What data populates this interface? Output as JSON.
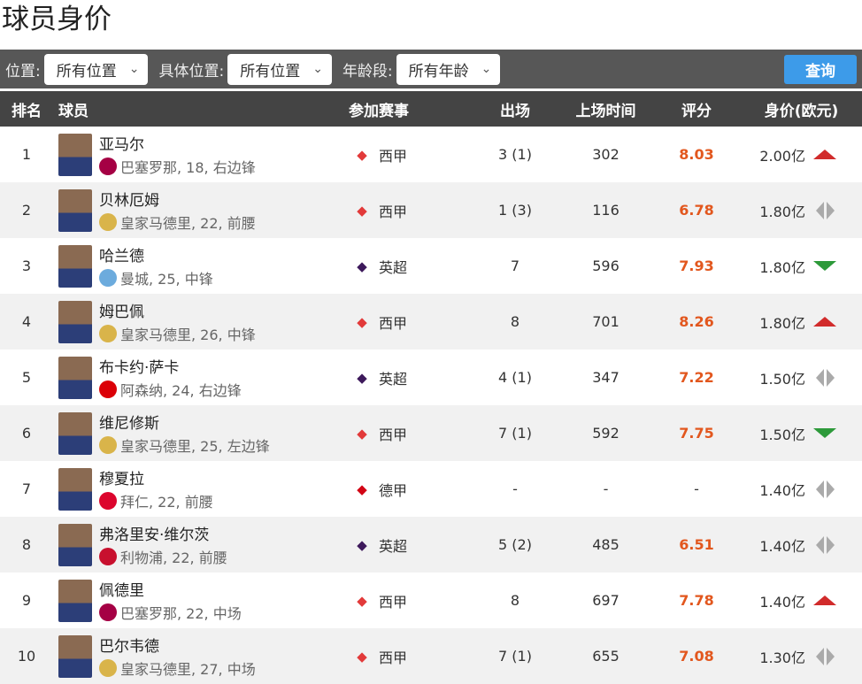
{
  "title": "球员身价",
  "filters": {
    "position_label": "位置:",
    "position_value": "所有位置",
    "detail_label": "具体位置:",
    "detail_value": "所有位置",
    "age_label": "年龄段:",
    "age_value": "所有年龄",
    "query_button": "查询"
  },
  "columns": [
    "排名",
    "球员",
    "参加赛事",
    "出场",
    "上场时间",
    "评分",
    "身价(欧元)"
  ],
  "colors": {
    "rating": "#e2571e",
    "up": "#d12b2b",
    "down": "#2d9a3a",
    "flat": "#aaaaaa",
    "query_button": "#3d9be9"
  },
  "rows": [
    {
      "rank": "1",
      "name": "亚马尔",
      "info": "巴塞罗那, 18, 右边锋",
      "club_color": "#a50044",
      "league": "西甲",
      "league_color": "#e23a3a",
      "apps": "3 (1)",
      "mins": "302",
      "rating": "8.03",
      "value": "2.00亿",
      "trend": "up"
    },
    {
      "rank": "2",
      "name": "贝林厄姆",
      "info": "皇家马德里, 22, 前腰",
      "club_color": "#d9b44a",
      "league": "西甲",
      "league_color": "#e23a3a",
      "apps": "1 (3)",
      "mins": "116",
      "rating": "6.78",
      "value": "1.80亿",
      "trend": "flat"
    },
    {
      "rank": "3",
      "name": "哈兰德",
      "info": "曼城, 25, 中锋",
      "club_color": "#6cabdd",
      "league": "英超",
      "league_color": "#3d195b",
      "apps": "7",
      "mins": "596",
      "rating": "7.93",
      "value": "1.80亿",
      "trend": "down"
    },
    {
      "rank": "4",
      "name": "姆巴佩",
      "info": "皇家马德里, 26, 中锋",
      "club_color": "#d9b44a",
      "league": "西甲",
      "league_color": "#e23a3a",
      "apps": "8",
      "mins": "701",
      "rating": "8.26",
      "value": "1.80亿",
      "trend": "up"
    },
    {
      "rank": "5",
      "name": "布卡约·萨卡",
      "info": "阿森纳, 24, 右边锋",
      "club_color": "#db0007",
      "league": "英超",
      "league_color": "#3d195b",
      "apps": "4 (1)",
      "mins": "347",
      "rating": "7.22",
      "value": "1.50亿",
      "trend": "flat"
    },
    {
      "rank": "6",
      "name": "维尼修斯",
      "info": "皇家马德里, 25, 左边锋",
      "club_color": "#d9b44a",
      "league": "西甲",
      "league_color": "#e23a3a",
      "apps": "7 (1)",
      "mins": "592",
      "rating": "7.75",
      "value": "1.50亿",
      "trend": "down"
    },
    {
      "rank": "7",
      "name": "穆夏拉",
      "info": "拜仁, 22, 前腰",
      "club_color": "#dc052d",
      "league": "德甲",
      "league_color": "#d20515",
      "apps": "-",
      "mins": "-",
      "rating": "-",
      "value": "1.40亿",
      "trend": "flat"
    },
    {
      "rank": "8",
      "name": "弗洛里安·维尔茨",
      "info": "利物浦, 22, 前腰",
      "club_color": "#c8102e",
      "league": "英超",
      "league_color": "#3d195b",
      "apps": "5 (2)",
      "mins": "485",
      "rating": "6.51",
      "value": "1.40亿",
      "trend": "flat"
    },
    {
      "rank": "9",
      "name": "佩德里",
      "info": "巴塞罗那, 22, 中场",
      "club_color": "#a50044",
      "league": "西甲",
      "league_color": "#e23a3a",
      "apps": "8",
      "mins": "697",
      "rating": "7.78",
      "value": "1.40亿",
      "trend": "up"
    },
    {
      "rank": "10",
      "name": "巴尔韦德",
      "info": "皇家马德里, 27, 中场",
      "club_color": "#d9b44a",
      "league": "西甲",
      "league_color": "#e23a3a",
      "apps": "7 (1)",
      "mins": "655",
      "rating": "7.08",
      "value": "1.30亿",
      "trend": "flat"
    }
  ]
}
